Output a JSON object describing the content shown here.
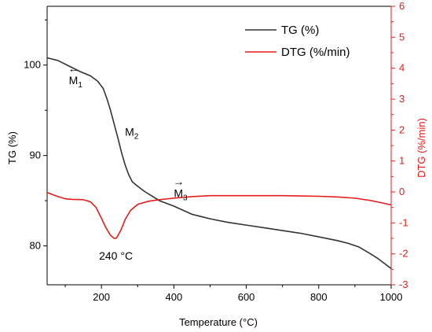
{
  "chart_data": {
    "type": "line",
    "xlabel": "Temperature (°C)",
    "ylabel_left": "TG (%)",
    "ylabel_right": "DTG (%/min)",
    "xlim": [
      50,
      1000
    ],
    "xticks": [
      "200",
      "400",
      "600",
      "800",
      "1000"
    ],
    "xtick_values": [
      200,
      400,
      600,
      800,
      1000
    ],
    "ylim_left": [
      75.7,
      106.5
    ],
    "yticks_left": [
      "80",
      "90",
      "100"
    ],
    "ytick_values_left": [
      80,
      90,
      100
    ],
    "ylim_right": [
      -3,
      6
    ],
    "yticks_right": [
      "-3",
      "-2",
      "-1",
      "0",
      "1",
      "2",
      "3",
      "4",
      "5",
      "6"
    ],
    "ytick_values_right": [
      -3,
      -2,
      -1,
      0,
      1,
      2,
      3,
      4,
      5,
      6
    ],
    "grid": false,
    "legend_position": "top-right",
    "colors": {
      "tg": "#333333",
      "dtg": "#e41c1c",
      "right_axis": "#e41c1c"
    },
    "series": [
      {
        "name": "TG (%)",
        "axis": "left",
        "x": [
          50,
          80,
          110,
          140,
          170,
          190,
          205,
          215,
          225,
          235,
          245,
          255,
          265,
          275,
          285,
          300,
          320,
          340,
          360,
          380,
          400,
          450,
          500,
          550,
          600,
          650,
          700,
          750,
          800,
          850,
          880,
          910,
          940,
          960,
          980,
          1000
        ],
        "y": [
          100.8,
          100.5,
          99.9,
          99.3,
          98.8,
          98.2,
          97.4,
          96.3,
          95.0,
          93.5,
          92.0,
          90.4,
          89.0,
          87.9,
          87.1,
          86.6,
          86.0,
          85.5,
          85.0,
          84.7,
          84.4,
          83.5,
          83.0,
          82.6,
          82.3,
          82.0,
          81.7,
          81.4,
          81.0,
          80.6,
          80.3,
          79.9,
          79.2,
          78.7,
          78.1,
          77.5
        ]
      },
      {
        "name": "DTG (%/min)",
        "axis": "right",
        "x": [
          50,
          80,
          100,
          120,
          150,
          170,
          185,
          200,
          212,
          225,
          235,
          240,
          245,
          255,
          265,
          280,
          300,
          330,
          360,
          400,
          450,
          500,
          550,
          600,
          650,
          700,
          750,
          800,
          850,
          900,
          940,
          970,
          1000
        ],
        "y": [
          -0.02,
          -0.15,
          -0.22,
          -0.24,
          -0.25,
          -0.32,
          -0.5,
          -0.85,
          -1.15,
          -1.4,
          -1.5,
          -1.5,
          -1.42,
          -1.2,
          -0.9,
          -0.6,
          -0.4,
          -0.3,
          -0.25,
          -0.2,
          -0.15,
          -0.12,
          -0.12,
          -0.12,
          -0.12,
          -0.12,
          -0.13,
          -0.14,
          -0.16,
          -0.2,
          -0.27,
          -0.34,
          -0.42
        ]
      }
    ],
    "annotations": [
      {
        "text": "M",
        "sub": "1",
        "arrow": "←",
        "x": 110,
        "y_left": 97.9
      },
      {
        "text": "M",
        "sub": "2",
        "x": 265,
        "y_left": 92.2
      },
      {
        "text": "M",
        "sub": "3",
        "arrow": "→",
        "x": 400,
        "y_left": 85.4
      },
      {
        "text": "240 °C",
        "x": 240,
        "y_left": 78.5
      }
    ]
  }
}
